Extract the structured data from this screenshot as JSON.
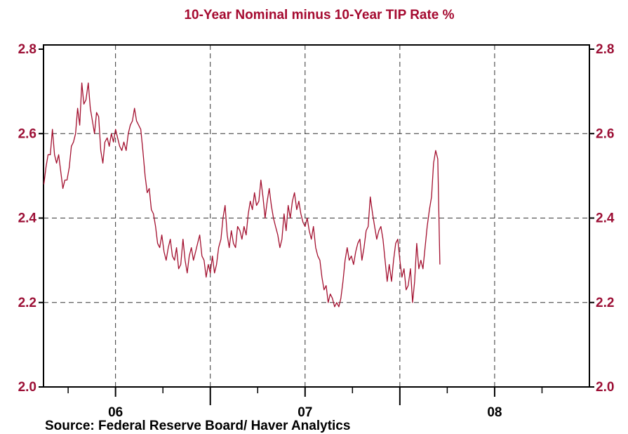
{
  "chart_data": {
    "type": "line",
    "title": "10-Year Nominal minus 10-Year TIP Rate   %",
    "source": "Source:  Federal Reserve Board/ Haver Analytics",
    "x": [
      2005.622,
      2005.633,
      2005.644,
      2005.656,
      2005.667,
      2005.678,
      2005.689,
      2005.7,
      2005.711,
      2005.722,
      2005.733,
      2005.744,
      2005.756,
      2005.767,
      2005.778,
      2005.789,
      2005.8,
      2005.811,
      2005.822,
      2005.833,
      2005.844,
      2005.856,
      2005.867,
      2005.878,
      2005.889,
      2005.9,
      2005.911,
      2005.922,
      2005.933,
      2005.944,
      2005.956,
      2005.967,
      2005.978,
      2005.989,
      2006.0,
      2006.011,
      2006.022,
      2006.033,
      2006.044,
      2006.056,
      2006.067,
      2006.078,
      2006.089,
      2006.1,
      2006.111,
      2006.122,
      2006.133,
      2006.144,
      2006.156,
      2006.167,
      2006.178,
      2006.189,
      2006.2,
      2006.211,
      2006.222,
      2006.233,
      2006.244,
      2006.256,
      2006.267,
      2006.278,
      2006.289,
      2006.3,
      2006.311,
      2006.322,
      2006.333,
      2006.344,
      2006.356,
      2006.367,
      2006.378,
      2006.389,
      2006.4,
      2006.411,
      2006.422,
      2006.433,
      2006.444,
      2006.456,
      2006.467,
      2006.478,
      2006.489,
      2006.5,
      2006.511,
      2006.522,
      2006.533,
      2006.544,
      2006.556,
      2006.567,
      2006.578,
      2006.589,
      2006.6,
      2006.611,
      2006.622,
      2006.633,
      2006.644,
      2006.656,
      2006.667,
      2006.678,
      2006.689,
      2006.7,
      2006.711,
      2006.722,
      2006.733,
      2006.744,
      2006.756,
      2006.767,
      2006.778,
      2006.789,
      2006.8,
      2006.811,
      2006.822,
      2006.833,
      2006.844,
      2006.856,
      2006.867,
      2006.878,
      2006.889,
      2006.9,
      2006.911,
      2006.922,
      2006.933,
      2006.944,
      2006.956,
      2006.967,
      2006.978,
      2006.989,
      2007.0,
      2007.011,
      2007.022,
      2007.033,
      2007.044,
      2007.056,
      2007.067,
      2007.078,
      2007.089,
      2007.1,
      2007.111,
      2007.122,
      2007.133,
      2007.144,
      2007.156,
      2007.167,
      2007.178,
      2007.189,
      2007.2,
      2007.211,
      2007.222,
      2007.233,
      2007.244,
      2007.256,
      2007.267,
      2007.278,
      2007.289,
      2007.3,
      2007.311,
      2007.322,
      2007.333,
      2007.344,
      2007.356,
      2007.367,
      2007.378,
      2007.389,
      2007.4,
      2007.411,
      2007.422,
      2007.433,
      2007.444,
      2007.456,
      2007.467,
      2007.478,
      2007.489,
      2007.5,
      2007.511,
      2007.522,
      2007.533,
      2007.544,
      2007.556,
      2007.567,
      2007.578,
      2007.589,
      2007.6,
      2007.611,
      2007.622,
      2007.633,
      2007.644,
      2007.656,
      2007.667,
      2007.678,
      2007.689,
      2007.7,
      2007.711
    ],
    "series": [
      {
        "color": "#a3102f",
        "values": [
          2.48,
          2.52,
          2.55,
          2.55,
          2.61,
          2.55,
          2.53,
          2.55,
          2.51,
          2.47,
          2.49,
          2.49,
          2.52,
          2.57,
          2.58,
          2.6,
          2.66,
          2.62,
          2.72,
          2.67,
          2.68,
          2.72,
          2.66,
          2.63,
          2.6,
          2.65,
          2.64,
          2.56,
          2.53,
          2.58,
          2.59,
          2.57,
          2.6,
          2.58,
          2.61,
          2.59,
          2.57,
          2.56,
          2.58,
          2.56,
          2.6,
          2.62,
          2.63,
          2.66,
          2.63,
          2.62,
          2.61,
          2.56,
          2.5,
          2.46,
          2.47,
          2.42,
          2.41,
          2.38,
          2.34,
          2.33,
          2.36,
          2.32,
          2.3,
          2.33,
          2.35,
          2.31,
          2.3,
          2.33,
          2.28,
          2.29,
          2.35,
          2.3,
          2.27,
          2.31,
          2.33,
          2.3,
          2.32,
          2.34,
          2.36,
          2.31,
          2.3,
          2.26,
          2.29,
          2.27,
          2.31,
          2.27,
          2.29,
          2.33,
          2.35,
          2.4,
          2.43,
          2.36,
          2.33,
          2.37,
          2.34,
          2.33,
          2.38,
          2.37,
          2.35,
          2.38,
          2.36,
          2.41,
          2.44,
          2.42,
          2.46,
          2.43,
          2.44,
          2.49,
          2.45,
          2.4,
          2.44,
          2.47,
          2.43,
          2.4,
          2.38,
          2.36,
          2.33,
          2.35,
          2.41,
          2.37,
          2.43,
          2.4,
          2.44,
          2.46,
          2.42,
          2.44,
          2.41,
          2.39,
          2.38,
          2.4,
          2.37,
          2.35,
          2.38,
          2.33,
          2.31,
          2.3,
          2.26,
          2.23,
          2.24,
          2.2,
          2.22,
          2.21,
          2.19,
          2.2,
          2.19,
          2.21,
          2.25,
          2.3,
          2.33,
          2.3,
          2.31,
          2.29,
          2.32,
          2.34,
          2.35,
          2.3,
          2.33,
          2.37,
          2.38,
          2.45,
          2.41,
          2.38,
          2.35,
          2.37,
          2.38,
          2.35,
          2.3,
          2.25,
          2.29,
          2.25,
          2.3,
          2.34,
          2.35,
          2.3,
          2.26,
          2.28,
          2.23,
          2.24,
          2.28,
          2.2,
          2.25,
          2.34,
          2.28,
          2.3,
          2.28,
          2.33,
          2.38,
          2.42,
          2.45,
          2.53,
          2.56,
          2.54,
          2.29
        ]
      }
    ],
    "xlim": [
      2005.62,
      2008.5
    ],
    "xticks": [
      {
        "value": 2006,
        "label": "06"
      },
      {
        "value": 2007,
        "label": "07"
      },
      {
        "value": 2008,
        "label": "08"
      }
    ],
    "xgrid": [
      2006,
      2006.5,
      2007,
      2007.5,
      2008
    ],
    "xminor": [
      2005.75,
      2006.25,
      2006.75,
      2007.25,
      2007.75,
      2008.25
    ],
    "ylim": [
      2.0,
      2.81
    ],
    "yticks": [
      {
        "value": 2,
        "label": "2.0"
      },
      2.2,
      2.4,
      2.6,
      2.8
    ],
    "y2lim": [
      2.0,
      2.81
    ],
    "y2ticks": [
      {
        "value": 2,
        "label": "2.0"
      },
      2.2,
      2.4,
      2.6,
      2.8
    ],
    "grid": true
  }
}
